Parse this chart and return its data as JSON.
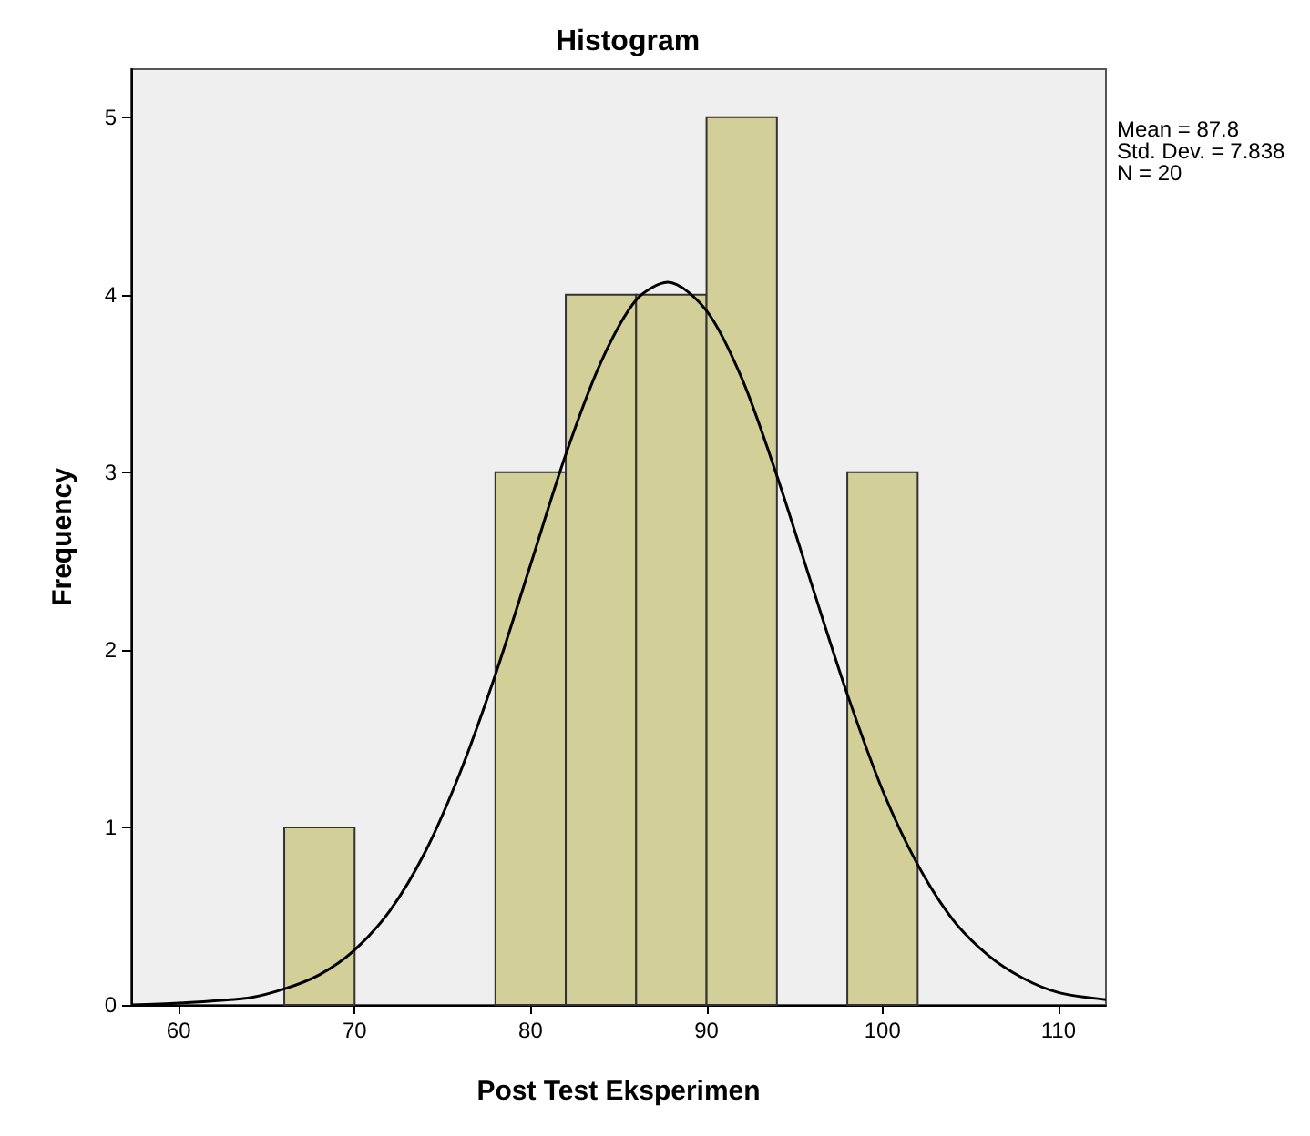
{
  "chart_data": {
    "type": "histogram",
    "title": "Histogram",
    "xlabel": "Post Test Eksperimen",
    "ylabel": "Frequency",
    "bins": [
      66,
      70,
      74,
      78,
      82,
      86,
      90,
      94,
      98,
      102
    ],
    "series": [
      {
        "color": "#d3cf99",
        "values": [
          1,
          0,
          0,
          3,
          4,
          4,
          5,
          0,
          3
        ]
      },
      {
        "type": "line",
        "color": "#000000",
        "x": [
          57.3,
          60,
          64,
          66,
          68,
          70,
          72,
          74,
          76,
          78,
          80,
          82,
          84,
          86,
          87.8,
          90,
          92,
          94,
          96,
          98,
          100,
          102,
          104,
          106,
          108,
          110,
          112.7
        ],
        "values": [
          0,
          0.01,
          0.04,
          0.09,
          0.17,
          0.31,
          0.53,
          0.86,
          1.31,
          1.86,
          2.48,
          3.1,
          3.62,
          3.97,
          4.07,
          3.91,
          3.53,
          2.98,
          2.36,
          1.75,
          1.21,
          0.79,
          0.48,
          0.28,
          0.15,
          0.07,
          0.03
        ]
      }
    ],
    "xlim": [
      57.3,
      112.7
    ],
    "xticks": [
      60,
      70,
      80,
      90,
      100,
      110
    ],
    "ylim": [
      0,
      5.27
    ],
    "yticks": [
      0,
      1,
      2,
      3,
      4,
      5
    ],
    "grid": false,
    "marker": "none",
    "line_style": "solid",
    "annotations": [
      "Mean = 87.8",
      "Std. Dev. = 7.838",
      "N = 20"
    ]
  }
}
